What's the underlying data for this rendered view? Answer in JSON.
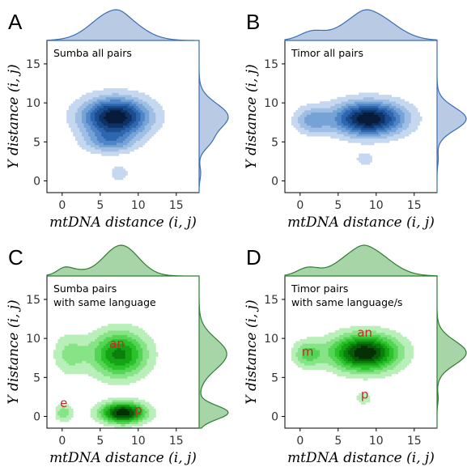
{
  "chart_data": [
    {
      "type": "heatmap",
      "panel": "A",
      "annotation": [
        "Sumba all pairs"
      ],
      "xlabel": "mtDNA distance (i, j)",
      "ylabel": "Y distance (i, j)",
      "xticks": [
        "0",
        "5",
        "10",
        "15"
      ],
      "yticks": [
        "0",
        "5",
        "10",
        "15"
      ],
      "xlim": [
        -2,
        18
      ],
      "ylim": [
        -1.5,
        18
      ],
      "cmap": "blue",
      "color": "#3a6db5",
      "fill": "#b9cbe4",
      "modes": [
        {
          "x": 7,
          "y": 8.2,
          "sx": 3.0,
          "sy": 1.7,
          "w": 1.0
        },
        {
          "x": 6.2,
          "y": 5.0,
          "sx": 2.3,
          "sy": 1.0,
          "w": 0.35
        },
        {
          "x": 7.5,
          "y": 1.0,
          "sx": 0.9,
          "sy": 0.8,
          "w": 0.18
        }
      ],
      "labels": []
    },
    {
      "type": "heatmap",
      "panel": "B",
      "annotation": [
        "Timor all pairs"
      ],
      "xlabel": "mtDNA distance (i, j)",
      "ylabel": "Y distance (i, j)",
      "xticks": [
        "0",
        "5",
        "10",
        "15"
      ],
      "yticks": [
        "0",
        "5",
        "10",
        "15"
      ],
      "xlim": [
        -2,
        18
      ],
      "ylim": [
        -1.5,
        18
      ],
      "cmap": "blue",
      "color": "#3a6db5",
      "fill": "#b9cbe4",
      "modes": [
        {
          "x": 9,
          "y": 8.0,
          "sx": 3.2,
          "sy": 1.5,
          "w": 1.0
        },
        {
          "x": 1.5,
          "y": 7.8,
          "sx": 1.6,
          "sy": 1.2,
          "w": 0.35
        },
        {
          "x": 8.5,
          "y": 2.8,
          "sx": 1.0,
          "sy": 0.8,
          "w": 0.15
        }
      ],
      "labels": []
    },
    {
      "type": "heatmap",
      "panel": "C",
      "annotation": [
        "Sumba pairs",
        "with same language"
      ],
      "xlabel": "mtDNA distance (i, j)",
      "ylabel": "Y distance (i, j)",
      "xticks": [
        "0",
        "5",
        "10",
        "15"
      ],
      "yticks": [
        "0",
        "5",
        "10",
        "15"
      ],
      "xlim": [
        -2,
        18
      ],
      "ylim": [
        -1.5,
        18
      ],
      "cmap": "green",
      "color": "#2e7d32",
      "fill": "#a8d5a8",
      "modes": [
        {
          "x": 8,
          "y": 0.5,
          "sx": 2.0,
          "sy": 0.9,
          "w": 1.0
        },
        {
          "x": 7.5,
          "y": 8.0,
          "sx": 2.5,
          "sy": 2.0,
          "w": 0.7
        },
        {
          "x": 0.2,
          "y": 0.5,
          "sx": 0.8,
          "sy": 0.8,
          "w": 0.3
        },
        {
          "x": 1.0,
          "y": 8.0,
          "sx": 1.5,
          "sy": 1.8,
          "w": 0.25
        }
      ],
      "labels": [
        {
          "text": "an",
          "x": 7.2,
          "y": 8.8
        },
        {
          "text": "e",
          "x": 0.2,
          "y": 1.2
        },
        {
          "text": "p",
          "x": 10.0,
          "y": 0.3
        }
      ]
    },
    {
      "type": "heatmap",
      "panel": "D",
      "annotation": [
        "Timor pairs",
        "with same language/s"
      ],
      "xlabel": "mtDNA distance (i, j)",
      "ylabel": "Y distance (i, j)",
      "xticks": [
        "0",
        "5",
        "10",
        "15"
      ],
      "yticks": [
        "0",
        "5",
        "10",
        "15"
      ],
      "xlim": [
        -2,
        18
      ],
      "ylim": [
        -1.5,
        18
      ],
      "cmap": "green",
      "color": "#2e7d32",
      "fill": "#a8d5a8",
      "modes": [
        {
          "x": 8.5,
          "y": 8.2,
          "sx": 3.0,
          "sy": 1.6,
          "w": 1.0
        },
        {
          "x": 1.0,
          "y": 8.0,
          "sx": 1.4,
          "sy": 1.2,
          "w": 0.35
        },
        {
          "x": 8.3,
          "y": 2.3,
          "sx": 0.9,
          "sy": 0.7,
          "w": 0.15
        }
      ],
      "labels": [
        {
          "text": "an",
          "x": 8.5,
          "y": 10.2
        },
        {
          "text": "m",
          "x": 1.0,
          "y": 7.8
        },
        {
          "text": "p",
          "x": 8.5,
          "y": 2.3
        }
      ]
    }
  ]
}
